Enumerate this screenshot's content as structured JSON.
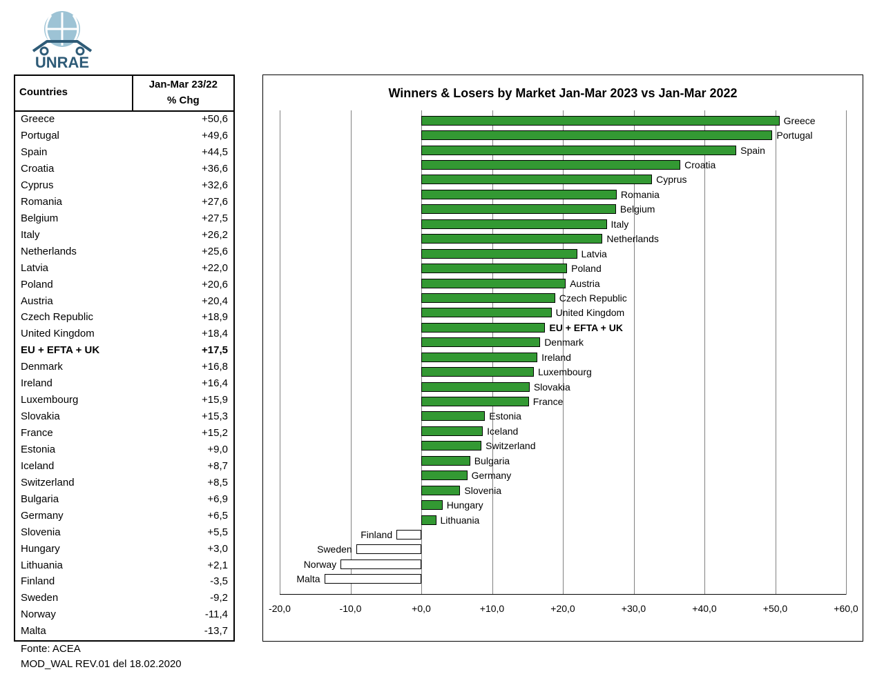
{
  "brand": {
    "name": "UNRAE",
    "logo_color": "#2e5b77",
    "globe_color": "#9dc3d5"
  },
  "table": {
    "header_country": "Countries",
    "header_value": "Jan-Mar 23/22\n% Chg"
  },
  "chart": {
    "title": "Winners & Losers by Market  Jan-Mar 2023 vs Jan-Mar 2022",
    "type": "bar-horizontal",
    "xmin": -20.0,
    "xmax": 60.0,
    "xtick_step": 10.0,
    "grid_color": "#808080",
    "positive_fill": "#339933",
    "negative_fill": "#ffffff",
    "bar_border": "#000000",
    "background_color": "#ffffff",
    "label_fontsize": 14,
    "tick_fontsize": 14,
    "title_fontsize": 18
  },
  "rows": [
    {
      "country": "Greece",
      "value": 50.6,
      "display": "+50,6",
      "bold": false
    },
    {
      "country": "Portugal",
      "value": 49.6,
      "display": "+49,6",
      "bold": false
    },
    {
      "country": "Spain",
      "value": 44.5,
      "display": "+44,5",
      "bold": false
    },
    {
      "country": "Croatia",
      "value": 36.6,
      "display": "+36,6",
      "bold": false
    },
    {
      "country": "Cyprus",
      "value": 32.6,
      "display": "+32,6",
      "bold": false
    },
    {
      "country": "Romania",
      "value": 27.6,
      "display": "+27,6",
      "bold": false
    },
    {
      "country": "Belgium",
      "value": 27.5,
      "display": "+27,5",
      "bold": false
    },
    {
      "country": "Italy",
      "value": 26.2,
      "display": "+26,2",
      "bold": false
    },
    {
      "country": "Netherlands",
      "value": 25.6,
      "display": "+25,6",
      "bold": false
    },
    {
      "country": "Latvia",
      "value": 22.0,
      "display": "+22,0",
      "bold": false
    },
    {
      "country": "Poland",
      "value": 20.6,
      "display": "+20,6",
      "bold": false
    },
    {
      "country": "Austria",
      "value": 20.4,
      "display": "+20,4",
      "bold": false
    },
    {
      "country": "Czech Republic",
      "value": 18.9,
      "display": "+18,9",
      "bold": false
    },
    {
      "country": "United Kingdom",
      "value": 18.4,
      "display": "+18,4",
      "bold": false
    },
    {
      "country": "EU + EFTA + UK",
      "value": 17.5,
      "display": "+17,5",
      "bold": true
    },
    {
      "country": "Denmark",
      "value": 16.8,
      "display": "+16,8",
      "bold": false
    },
    {
      "country": "Ireland",
      "value": 16.4,
      "display": "+16,4",
      "bold": false
    },
    {
      "country": "Luxembourg",
      "value": 15.9,
      "display": "+15,9",
      "bold": false
    },
    {
      "country": "Slovakia",
      "value": 15.3,
      "display": "+15,3",
      "bold": false
    },
    {
      "country": "France",
      "value": 15.2,
      "display": "+15,2",
      "bold": false
    },
    {
      "country": "Estonia",
      "value": 9.0,
      "display": "+9,0",
      "bold": false
    },
    {
      "country": "Iceland",
      "value": 8.7,
      "display": "+8,7",
      "bold": false
    },
    {
      "country": "Switzerland",
      "value": 8.5,
      "display": "+8,5",
      "bold": false
    },
    {
      "country": "Bulgaria",
      "value": 6.9,
      "display": "+6,9",
      "bold": false
    },
    {
      "country": "Germany",
      "value": 6.5,
      "display": "+6,5",
      "bold": false
    },
    {
      "country": "Slovenia",
      "value": 5.5,
      "display": "+5,5",
      "bold": false
    },
    {
      "country": "Hungary",
      "value": 3.0,
      "display": "+3,0",
      "bold": false
    },
    {
      "country": "Lithuania",
      "value": 2.1,
      "display": "+2,1",
      "bold": false
    },
    {
      "country": "Finland",
      "value": -3.5,
      "display": "-3,5",
      "bold": false
    },
    {
      "country": "Sweden",
      "value": -9.2,
      "display": "-9,2",
      "bold": false
    },
    {
      "country": "Norway",
      "value": -11.4,
      "display": "-11,4",
      "bold": false
    },
    {
      "country": "Malta",
      "value": -13.7,
      "display": "-13,7",
      "bold": false
    }
  ],
  "footer": {
    "source": "Fonte: ACEA",
    "rev": "MOD_WAL REV.01 del 18.02.2020"
  },
  "axis_labels": [
    "-20,0",
    "-10,0",
    "+0,0",
    "+10,0",
    "+20,0",
    "+30,0",
    "+40,0",
    "+50,0",
    "+60,0"
  ]
}
